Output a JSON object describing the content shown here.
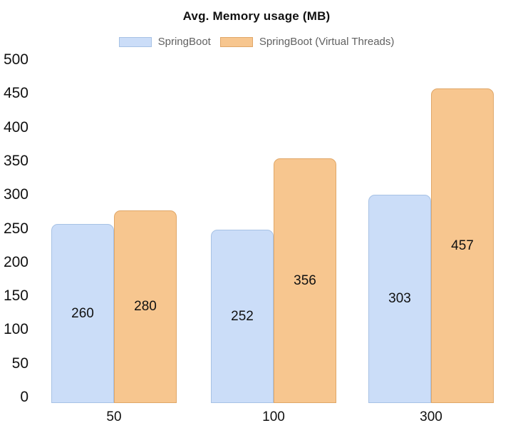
{
  "chart_data": {
    "type": "bar",
    "title": "Avg. Memory usage (MB)",
    "categories": [
      "50",
      "100",
      "300"
    ],
    "series": [
      {
        "name": "SpringBoot",
        "fill": "#CBDDF8",
        "border": "#A7C2E5",
        "values": [
          260,
          252,
          303
        ]
      },
      {
        "name": "SpringBoot (Virtual Threads)",
        "fill": "#F7C68F",
        "border": "#E0A768",
        "values": [
          280,
          356,
          457
        ]
      }
    ],
    "ylim": [
      0,
      500
    ],
    "ytick_step": 50,
    "grid": false,
    "axis_lines": false,
    "legend_position": "top",
    "value_label_position": "inside-center",
    "colors": {
      "background": "#ffffff",
      "title_text": "#111111",
      "legend_text": "#616161",
      "tick_text": "#111111",
      "value_label_text": "#111111"
    }
  }
}
